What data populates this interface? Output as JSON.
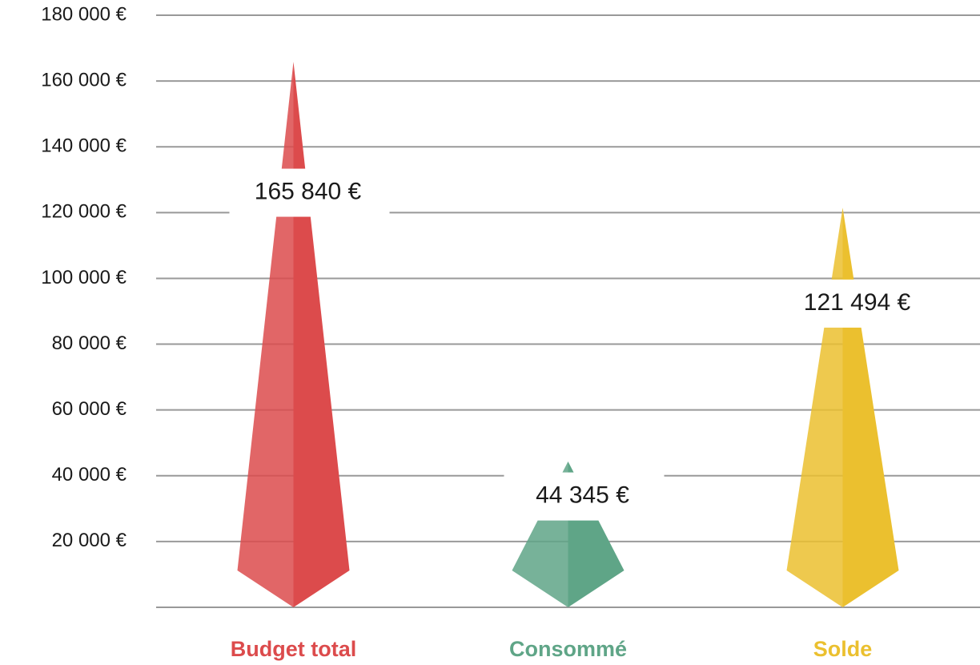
{
  "chart_data": {
    "type": "spike",
    "categories": [
      "Budget total",
      "Consommé",
      "Solde"
    ],
    "values": [
      165840,
      44345,
      121494
    ],
    "value_labels": [
      "165 840 €",
      "44 345 €",
      "121 494 €"
    ],
    "colors": [
      "#dc4b4c",
      "#5fa587",
      "#ebc02f"
    ],
    "ylim": [
      0,
      180000
    ],
    "yticks": [
      {
        "value": 20000,
        "label": "20 000 €"
      },
      {
        "value": 40000,
        "label": "40 000 €"
      },
      {
        "value": 60000,
        "label": "60 000 €"
      },
      {
        "value": 80000,
        "label": "80 000 €"
      },
      {
        "value": 100000,
        "label": "100 000 €"
      },
      {
        "value": 120000,
        "label": "120 000 €"
      },
      {
        "value": 140000,
        "label": "140 000 €"
      },
      {
        "value": 160000,
        "label": "160 000 €"
      },
      {
        "value": 180000,
        "label": "180 000 €"
      }
    ],
    "grid": true
  }
}
